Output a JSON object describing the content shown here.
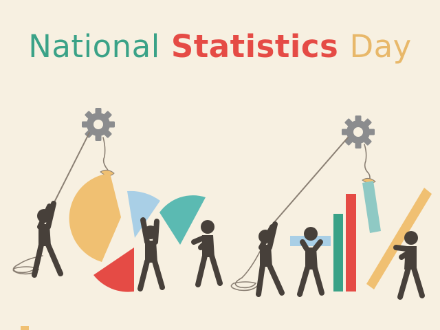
{
  "title": {
    "word1": "National",
    "word2": "Statistics",
    "word3": "Day"
  },
  "colors": {
    "background": "#f7f0e1",
    "word1": "#3aa287",
    "word2": "#e54b45",
    "word3": "#e8b86a",
    "figure": "#47403a",
    "gear": "#8b8c8e",
    "rope": "#8a7f73",
    "orange": "#f0c072",
    "light_blue": "#a9cfe6",
    "teal": "#5bbab2",
    "red": "#e54b45",
    "green": "#3aa287"
  }
}
